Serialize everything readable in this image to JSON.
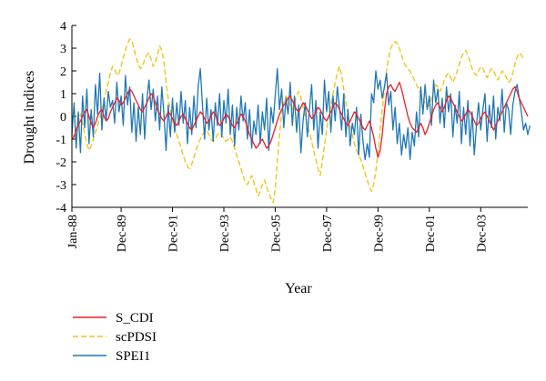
{
  "chart_data": {
    "type": "line",
    "title": "",
    "xlabel": "Year",
    "ylabel": "Drought indices",
    "ylim": [
      -4,
      4
    ],
    "yticks": [
      "-4",
      "-3",
      "-2",
      "-1",
      "0",
      "1",
      "2",
      "3",
      "4"
    ],
    "x_start": "Jan-88",
    "x_end": "Dec-05",
    "xticks": [
      "Jan-88",
      "Dec-89",
      "Dec-91",
      "Dec-93",
      "Dec-95",
      "Dec-97",
      "Dec-99",
      "Dec-01",
      "Dec-03"
    ],
    "grid": false,
    "legend_placement": "bottom-left",
    "series": [
      {
        "name": "S_CDI",
        "color": "#e8202a",
        "style": "solid",
        "values": [
          -1.0,
          -0.9,
          -0.6,
          -0.4,
          -0.2,
          0.0,
          0.2,
          0.3,
          0.0,
          -0.3,
          -0.5,
          -0.3,
          0.0,
          0.2,
          0.3,
          0.0,
          -0.2,
          -0.1,
          0.2,
          0.4,
          0.6,
          0.8,
          0.7,
          0.5,
          0.6,
          0.8,
          1.0,
          1.2,
          1.1,
          0.9,
          0.7,
          0.5,
          0.3,
          0.2,
          0.4,
          0.6,
          0.8,
          1.0,
          0.9,
          0.6,
          0.3,
          0.1,
          -0.1,
          -0.2,
          0.0,
          0.2,
          0.1,
          -0.1,
          -0.3,
          -0.4,
          -0.2,
          0.0,
          0.1,
          -0.1,
          -0.3,
          -0.5,
          -0.6,
          -0.4,
          -0.2,
          0.0,
          0.2,
          0.1,
          -0.1,
          -0.3,
          -0.2,
          0.0,
          0.2,
          0.1,
          -0.2,
          -0.4,
          -0.3,
          -0.1,
          0.1,
          0.0,
          -0.2,
          -0.4,
          -0.5,
          -0.3,
          -0.1,
          0.1,
          0.0,
          -0.2,
          -0.5,
          -0.8,
          -1.0,
          -1.2,
          -1.4,
          -1.3,
          -1.1,
          -1.0,
          -1.2,
          -1.4,
          -1.3,
          -1.1,
          -0.8,
          -0.5,
          -0.2,
          0.1,
          0.3,
          0.5,
          0.6,
          0.8,
          0.9,
          0.7,
          0.5,
          0.3,
          0.2,
          0.4,
          0.6,
          0.5,
          0.3,
          0.1,
          -0.1,
          0.0,
          0.2,
          0.4,
          0.3,
          0.1,
          -0.1,
          -0.2,
          0.0,
          0.2,
          0.4,
          0.6,
          0.5,
          0.3,
          0.1,
          -0.1,
          -0.3,
          -0.4,
          -0.2,
          0.0,
          0.2,
          0.1,
          -0.1,
          -0.3,
          -0.5,
          -0.6,
          -0.4,
          -0.2,
          -0.5,
          -0.9,
          -1.4,
          -1.8,
          -1.5,
          -0.8,
          0.2,
          1.0,
          1.3,
          1.4,
          1.2,
          1.1,
          1.3,
          1.5,
          1.2,
          0.8,
          0.4,
          0.0,
          -0.3,
          -0.5,
          -0.6,
          -0.7,
          -0.5,
          -0.3,
          -0.5,
          -0.8,
          -0.6,
          -0.3,
          0.0,
          0.3,
          0.5,
          0.6,
          0.4,
          0.2,
          0.4,
          0.7,
          0.9,
          0.8,
          0.6,
          0.4,
          0.2,
          0.0,
          -0.2,
          -0.1,
          0.1,
          0.3,
          0.2,
          0.0,
          -0.2,
          -0.4,
          -0.3,
          -0.1,
          0.1,
          0.2,
          0.0,
          -0.2,
          -0.4,
          -0.6,
          -0.4,
          -0.2,
          0.0,
          0.2,
          0.4,
          0.6,
          0.8,
          1.0,
          1.2,
          1.3,
          1.1,
          0.8,
          0.6,
          0.4,
          0.2,
          0.0
        ]
      },
      {
        "name": "scPDSI",
        "color": "#f0c419",
        "style": "dashed",
        "values": [
          -0.8,
          -0.9,
          -0.5,
          -0.2,
          0.1,
          -0.3,
          -0.8,
          -1.2,
          -1.5,
          -1.3,
          -1.0,
          -0.7,
          -0.4,
          -0.1,
          0.3,
          0.7,
          1.1,
          1.5,
          1.9,
          2.2,
          2.1,
          1.8,
          1.9,
          2.2,
          2.6,
          2.9,
          3.2,
          3.4,
          3.3,
          3.0,
          2.6,
          2.3,
          2.1,
          2.2,
          2.5,
          2.7,
          2.8,
          2.5,
          2.2,
          2.4,
          2.7,
          3.1,
          2.9,
          2.4,
          1.5,
          0.8,
          0.3,
          -0.2,
          -0.5,
          -0.8,
          -1.1,
          -1.4,
          -1.7,
          -2.0,
          -2.2,
          -2.3,
          -2.1,
          -1.8,
          -1.5,
          -1.2,
          -1.0,
          -0.8,
          -0.7,
          -0.6,
          -0.8,
          -1.0,
          -1.1,
          -1.0,
          -0.8,
          -0.7,
          -0.8,
          -1.0,
          -1.1,
          -1.0,
          -0.9,
          -1.1,
          -1.4,
          -1.7,
          -2.0,
          -2.3,
          -2.6,
          -2.9,
          -3.0,
          -2.8,
          -2.6,
          -2.9,
          -3.2,
          -3.5,
          -3.3,
          -3.0,
          -2.8,
          -3.1,
          -3.4,
          -3.6,
          -3.8,
          -3.2,
          -2.0,
          -0.8,
          0.2,
          0.6,
          0.9,
          0.7,
          0.5,
          0.3,
          0.6,
          0.9,
          1.1,
          0.8,
          0.4,
          0.0,
          -0.4,
          -0.7,
          -1.1,
          -1.5,
          -1.9,
          -2.3,
          -2.6,
          -2.0,
          -1.3,
          -0.6,
          0.0,
          0.5,
          1.0,
          1.5,
          1.9,
          2.2,
          1.8,
          1.2,
          0.6,
          0.1,
          -0.4,
          -0.8,
          -1.2,
          -1.5,
          -1.7,
          -1.9,
          -2.2,
          -2.5,
          -2.8,
          -3.1,
          -3.3,
          -3.0,
          -2.4,
          -1.6,
          -0.6,
          0.3,
          1.2,
          2.0,
          2.6,
          3.0,
          3.2,
          3.3,
          3.2,
          3.0,
          2.7,
          2.4,
          2.2,
          2.1,
          2.0,
          1.8,
          1.6,
          1.4,
          1.2,
          1.0,
          0.8,
          0.6,
          0.4,
          0.5,
          0.8,
          1.1,
          1.4,
          1.3,
          1.1,
          1.3,
          1.6,
          1.8,
          1.9,
          1.7,
          1.5,
          1.7,
          2.0,
          2.3,
          2.6,
          2.8,
          2.9,
          2.7,
          2.4,
          2.1,
          1.9,
          1.8,
          2.0,
          2.2,
          2.1,
          1.9,
          1.7,
          1.9,
          2.1,
          2.0,
          1.8,
          1.6,
          1.8,
          2.0,
          1.9,
          1.7,
          1.5,
          1.6,
          1.9,
          2.3,
          2.6,
          2.8,
          2.7,
          2.5
        ]
      },
      {
        "name": "SPEI1",
        "color": "#1f77b4",
        "style": "solid",
        "values": [
          -0.8,
          0.6,
          -1.4,
          0.2,
          -1.6,
          0.9,
          -0.5,
          1.2,
          -1.2,
          0.3,
          -0.9,
          1.4,
          0.1,
          1.9,
          -0.6,
          0.8,
          -0.2,
          1.1,
          0.4,
          0.7,
          -0.3,
          1.5,
          0.2,
          0.9,
          -0.4,
          1.8,
          0.5,
          1.3,
          -0.7,
          0.6,
          -1.1,
          0.4,
          -0.8,
          1.0,
          -1.0,
          0.7,
          1.6,
          0.3,
          1.2,
          -0.2,
          0.9,
          -0.6,
          1.3,
          0.1,
          -1.5,
          0.5,
          -0.9,
          0.8,
          -0.7,
          0.6,
          -0.4,
          1.1,
          -0.3,
          0.7,
          -1.2,
          0.4,
          -0.8,
          0.9,
          -0.5,
          1.3,
          2.1,
          0.5,
          -1.0,
          0.8,
          -0.6,
          0.3,
          -1.1,
          0.6,
          -0.4,
          1.0,
          -0.9,
          0.7,
          -0.3,
          1.2,
          -0.8,
          0.5,
          -1.3,
          0.4,
          -0.6,
          0.9,
          -0.2,
          0.6,
          -1.0,
          0.3,
          -1.4,
          -0.2,
          -0.8,
          0.5,
          -1.2,
          0.2,
          -0.6,
          0.8,
          -1.5,
          0.4,
          -0.3,
          0.9,
          2.1,
          0.3,
          1.2,
          -0.5,
          0.8,
          0.1,
          1.5,
          -0.4,
          0.9,
          -0.7,
          0.5,
          -1.6,
          -0.2,
          0.6,
          -0.9,
          0.3,
          1.4,
          -0.6,
          0.7,
          -1.4,
          0.2,
          -0.8,
          1.6,
          0.2,
          1.1,
          -0.7,
          0.9,
          -0.2,
          1.3,
          0.4,
          -0.6,
          1.0,
          -0.9,
          0.3,
          -1.3,
          -0.3,
          -0.8,
          0.4,
          -1.7,
          0.1,
          -1.1,
          -1.9,
          -1.2,
          -1.8,
          1.0,
          0.6,
          2.0,
          1.2,
          1.6,
          0.8,
          1.3,
          1.9,
          0.5,
          1.1,
          -0.6,
          0.4,
          -1.2,
          -0.3,
          -1.7,
          -0.8,
          -1.4,
          -0.5,
          -1.9,
          -0.7,
          -1.3,
          0.2,
          -0.9,
          1.3,
          0.1,
          1.4,
          0.3,
          0.9,
          -0.4,
          1.6,
          0.6,
          1.2,
          -0.3,
          0.8,
          -0.5,
          1.3,
          0.2,
          1.0,
          -0.9,
          0.5,
          -0.3,
          1.1,
          -1.2,
          0.4,
          -0.8,
          0.7,
          -1.3,
          0.2,
          -1.7,
          -0.4,
          0.6,
          -0.6,
          0.3,
          1.0,
          -1.1,
          0.5,
          -0.5,
          0.9,
          -1.0,
          0.4,
          -0.2,
          1.2,
          -0.7,
          0.6,
          0.3,
          -0.8,
          0.5,
          1.1,
          1.4,
          0.8,
          0.2,
          -0.6,
          -0.3,
          -0.8,
          -0.4
        ]
      }
    ]
  }
}
